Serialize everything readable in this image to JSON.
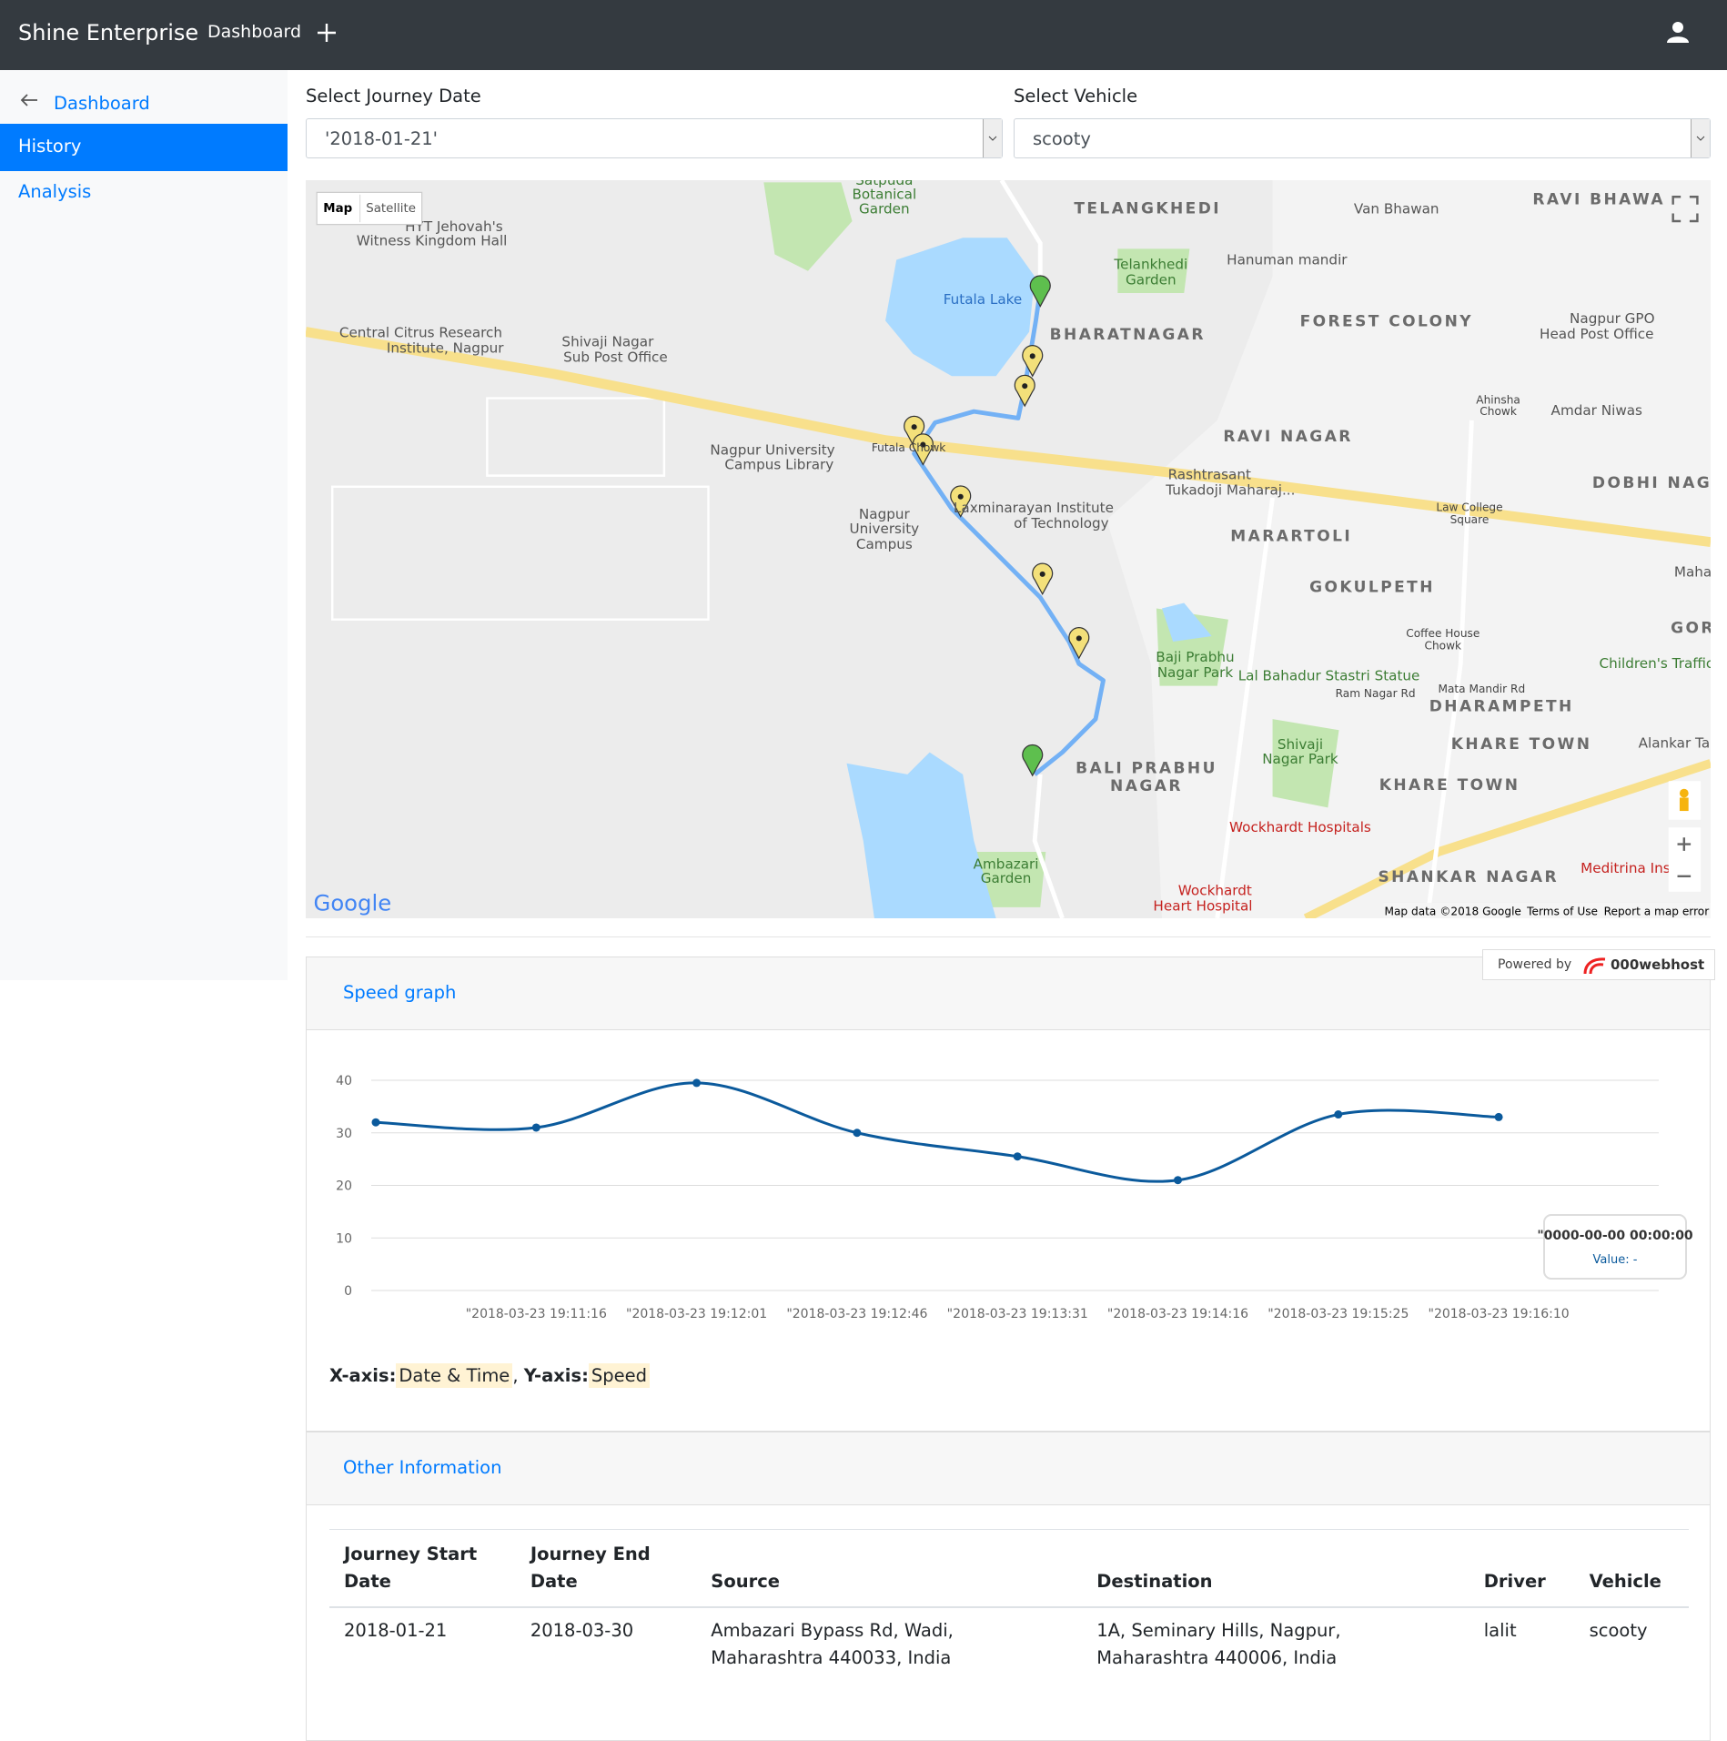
{
  "navbar": {
    "brand": "Shine Enterprise",
    "link": "Dashboard"
  },
  "sidebar": {
    "back": "Dashboard",
    "items": [
      "History",
      "Analysis"
    ],
    "active": 0
  },
  "form": {
    "date_label": "Select Journey Date",
    "date_value": "'2018-01-21'",
    "vehicle_label": "Select Vehicle",
    "vehicle_value": "scooty"
  },
  "map": {
    "buttons": [
      "Map",
      "Satellite"
    ],
    "logo": "Google",
    "footer": [
      "Map data ©2018 Google",
      "Terms of Use",
      "Report a map error"
    ],
    "labels": [
      "Satpuda",
      "Botanical",
      "Garden",
      "HYT Jehovah's",
      "Witness Kingdom Hall",
      "TELANGKHEDI",
      "Van Bhawan",
      "RAVI BHAWA",
      "Futala Lake",
      "Telankhedi",
      "Garden",
      "Hanuman mandir",
      "BHARATNAGAR",
      "FOREST COLONY",
      "Nagpur GPO",
      "Head Post Office",
      "Central Citrus Research",
      "Institute, Nagpur",
      "Shivaji Nagar",
      "Sub Post Office",
      "Ahinsha",
      "Chowk",
      "Amdar Niwas",
      "RAVI NAGAR",
      "Futala Chowk",
      "Nagpur University",
      "Campus Library",
      "DOBHI NAG",
      "Rashtrasant",
      "Tukadoji Maharaj...",
      "Law College",
      "Square",
      "Nagpur",
      "University",
      "Campus",
      "Laxminarayan Institute",
      "of Technology",
      "MARARTOLI",
      "GOKULPETH",
      "Coffee House",
      "Chowk",
      "Baji Prabhu",
      "Nagar Park",
      "Lal Bahadur Stastri Statue",
      "Children's Traffic",
      "Mata Mandir Rd",
      "Ram Nagar Rd",
      "DHARAMPETH",
      "KHARE TOWN",
      "Alankar Ta",
      "Shivaji",
      "Nagar Park",
      "BALI PRABHU",
      "NAGAR",
      "KHARE TOWN",
      "Wockhardt Hospitals",
      "Ambazari",
      "Garden",
      "SHANKAR NAGAR",
      "Meditrina Ins",
      "Wockhardt",
      "Heart Hospital",
      "Maha",
      "GOR"
    ]
  },
  "badge": {
    "prefix": "Powered by",
    "brand": "000webhost"
  },
  "chart_data": {
    "type": "line",
    "title": "Speed graph",
    "categories": [
      null,
      "\"2018-03-23 19:11:16",
      "\"2018-03-23 19:12:01",
      "\"2018-03-23 19:12:46",
      "\"2018-03-23 19:13:31",
      "\"2018-03-23 19:14:16",
      "\"2018-03-23 19:15:25",
      "\"2018-03-23 19:16:10"
    ],
    "values": [
      32,
      31,
      39.5,
      30,
      25.5,
      21,
      33.5,
      33
    ],
    "color": "#0b5a9c",
    "ylim": [
      0,
      40
    ],
    "yticks": [
      0,
      10,
      20,
      30,
      40
    ],
    "grid": true,
    "tooltip": {
      "title": "\"0000-00-00 00:00:00",
      "value_text": "Value: -"
    },
    "x_prefix": "X-axis:",
    "x_label": "Date & Time",
    "separator": ",",
    "y_prefix": "Y-axis:",
    "y_label": "Speed"
  },
  "info": {
    "title": "Other Information",
    "table": {
      "headers": [
        "Journey Start Date",
        "Journey End Date",
        "Source",
        "Destination",
        "Driver",
        "Vehicle"
      ],
      "rows": [
        [
          "2018-01-21",
          "2018-03-30",
          "Ambazari Bypass Rd, Wadi, Maharashtra 440033, India",
          "1A, Seminary Hills, Nagpur, Maharashtra 440006, India",
          "lalit",
          "scooty"
        ]
      ]
    }
  }
}
